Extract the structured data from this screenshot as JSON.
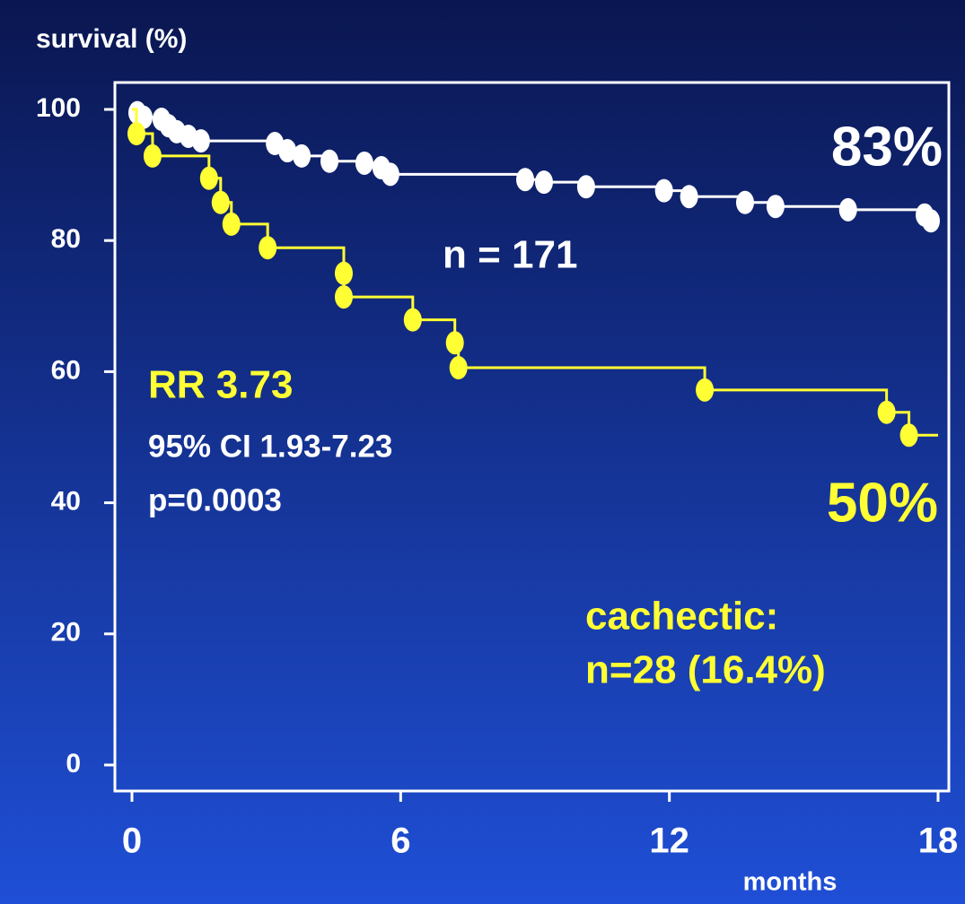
{
  "chart_data": {
    "type": "step",
    "ylabel": "survival (%)",
    "xlabel": "months",
    "xlim": [
      0,
      18
    ],
    "ylim": [
      0,
      100
    ],
    "xticks": [
      0,
      6,
      12,
      18
    ],
    "yticks": [
      0,
      20,
      40,
      60,
      80,
      100
    ],
    "series": [
      {
        "color": "#ffffff",
        "x": [
          0.12,
          0.26,
          0.66,
          0.82,
          1.0,
          1.26,
          1.54,
          3.19,
          3.47,
          3.79,
          4.41,
          5.19,
          5.57,
          5.77,
          8.78,
          9.2,
          10.14,
          11.88,
          12.44,
          13.69,
          14.37,
          15.99,
          17.7,
          17.84
        ],
        "values": [
          99.5,
          98.8,
          98.5,
          97.5,
          96.6,
          95.9,
          95.2,
          94.8,
          93.7,
          92.9,
          92.1,
          91.8,
          91.1,
          90.1,
          89.3,
          88.9,
          88.2,
          87.6,
          86.7,
          85.8,
          85.2,
          84.7,
          83.9,
          83.0
        ]
      },
      {
        "color": "#ffff33",
        "x": [
          0.1,
          0.46,
          1.72,
          1.98,
          2.22,
          3.03,
          4.73,
          4.73,
          6.27,
          7.21,
          7.29,
          12.79,
          16.85,
          17.35
        ],
        "values": [
          96.3,
          92.9,
          89.5,
          85.8,
          82.5,
          78.9,
          75.0,
          71.4,
          67.9,
          64.4,
          60.6,
          57.2,
          53.8,
          50.3
        ]
      }
    ],
    "annotations": [
      "83%",
      "n = 171",
      "RR 3.73",
      "95% CI 1.93-7.23",
      "p=0.0003",
      "50%",
      "cachectic:",
      "n=28 (16.4%)"
    ]
  }
}
